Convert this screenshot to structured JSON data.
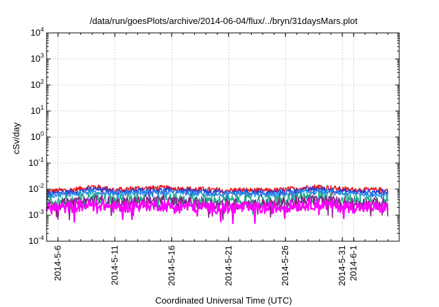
{
  "chart_data": {
    "type": "line",
    "title": "/data/run/goesPlots/archive/2014-06-04/flux/../bryn/31daysMars.plot",
    "xlabel": "Coordinated Universal Time (UTC)",
    "ylabel": "cSv/day",
    "scale_y": "log",
    "ylim": [
      0.0001,
      10000
    ],
    "y_ticks": [
      {
        "value": 0.0001,
        "base": "10",
        "exp": "-4"
      },
      {
        "value": 0.001,
        "base": "10",
        "exp": "-3"
      },
      {
        "value": 0.01,
        "base": "10",
        "exp": "-2"
      },
      {
        "value": 0.1,
        "base": "10",
        "exp": "-1"
      },
      {
        "value": 1,
        "base": "10",
        "exp": "0"
      },
      {
        "value": 10,
        "base": "10",
        "exp": "1"
      },
      {
        "value": 100,
        "base": "10",
        "exp": "2"
      },
      {
        "value": 1000,
        "base": "10",
        "exp": "3"
      },
      {
        "value": 10000,
        "base": "10",
        "exp": "4"
      }
    ],
    "xlim": [
      "2014-05-05T00:00",
      "2014-06-05T00:00"
    ],
    "x_ticks": [
      "2014-5-6",
      "2014-5-11",
      "2014-5-16",
      "2014-5-21",
      "2014-5-26",
      "2014-5-31",
      "2014-6-1"
    ],
    "grid": true,
    "x": [
      "2014-05-05",
      "2014-05-06",
      "2014-05-07",
      "2014-05-08",
      "2014-05-09",
      "2014-05-10",
      "2014-05-11",
      "2014-05-12",
      "2014-05-13",
      "2014-05-14",
      "2014-05-15",
      "2014-05-16",
      "2014-05-17",
      "2014-05-18",
      "2014-05-19",
      "2014-05-20",
      "2014-05-21",
      "2014-05-22",
      "2014-05-23",
      "2014-05-24",
      "2014-05-25",
      "2014-05-26",
      "2014-05-27",
      "2014-05-28",
      "2014-05-29",
      "2014-05-30",
      "2014-05-31",
      "2014-06-01",
      "2014-06-02",
      "2014-06-03",
      "2014-06-04"
    ],
    "series": [
      {
        "color": "#e8141c",
        "values": [
          0.0082,
          0.0088,
          0.0092,
          0.0105,
          0.0125,
          0.0112,
          0.0094,
          0.0101,
          0.0108,
          0.011,
          0.0112,
          0.0106,
          0.0104,
          0.01,
          0.0096,
          0.0092,
          0.009,
          0.0094,
          0.009,
          0.0087,
          0.0089,
          0.0096,
          0.0108,
          0.0116,
          0.0124,
          0.0112,
          0.01,
          0.0096,
          0.0093,
          0.0094,
          0.0091
        ]
      },
      {
        "color": "#2a3fd6",
        "values": [
          0.0068,
          0.0072,
          0.0076,
          0.0086,
          0.01,
          0.0092,
          0.0078,
          0.0083,
          0.0089,
          0.0091,
          0.0093,
          0.0088,
          0.0086,
          0.0083,
          0.008,
          0.0077,
          0.0075,
          0.0078,
          0.0075,
          0.0073,
          0.0074,
          0.008,
          0.0089,
          0.0096,
          0.0102,
          0.0093,
          0.0083,
          0.008,
          0.0077,
          0.0078,
          0.0076
        ]
      },
      {
        "color": "#2a8fe8",
        "values": [
          0.0058,
          0.0061,
          0.0064,
          0.0071,
          0.0082,
          0.0076,
          0.0065,
          0.0069,
          0.0073,
          0.0075,
          0.0076,
          0.0072,
          0.0071,
          0.0068,
          0.0066,
          0.0064,
          0.0062,
          0.0064,
          0.0062,
          0.006,
          0.0061,
          0.0066,
          0.0073,
          0.0078,
          0.0083,
          0.0076,
          0.0068,
          0.0066,
          0.0064,
          0.0065,
          0.0063
        ]
      },
      {
        "color": "#1faa8a",
        "values": [
          0.0032,
          0.0034,
          0.0036,
          0.0042,
          0.005,
          0.0045,
          0.0037,
          0.004,
          0.0043,
          0.0044,
          0.0045,
          0.0042,
          0.0041,
          0.0039,
          0.0038,
          0.0036,
          0.0035,
          0.0037,
          0.0035,
          0.0034,
          0.0035,
          0.0038,
          0.0043,
          0.0047,
          0.005,
          0.0045,
          0.004,
          0.0038,
          0.0037,
          0.0037,
          0.0036
        ]
      },
      {
        "color": "#8a1e8a",
        "values": [
          0.0024,
          0.0026,
          0.0027,
          0.0031,
          0.0037,
          0.0034,
          0.0028,
          0.003,
          0.0032,
          0.0033,
          0.0034,
          0.0031,
          0.0031,
          0.0029,
          0.0028,
          0.0027,
          0.0026,
          0.0028,
          0.0026,
          0.0026,
          0.0026,
          0.0029,
          0.0032,
          0.0035,
          0.0037,
          0.0034,
          0.003,
          0.0029,
          0.0028,
          0.0028,
          0.0027
        ]
      },
      {
        "color": "#ff00ff",
        "values": [
          0.0018,
          0.0019,
          0.002,
          0.0023,
          0.0026,
          0.0024,
          0.002,
          0.0021,
          0.0023,
          0.0024,
          0.0024,
          0.0022,
          0.0022,
          0.0021,
          0.002,
          0.0019,
          0.0019,
          0.002,
          0.0019,
          0.0018,
          0.0019,
          0.0021,
          0.0023,
          0.0025,
          0.0027,
          0.0024,
          0.0021,
          0.002,
          0.002,
          0.002,
          0.0019
        ]
      }
    ]
  }
}
